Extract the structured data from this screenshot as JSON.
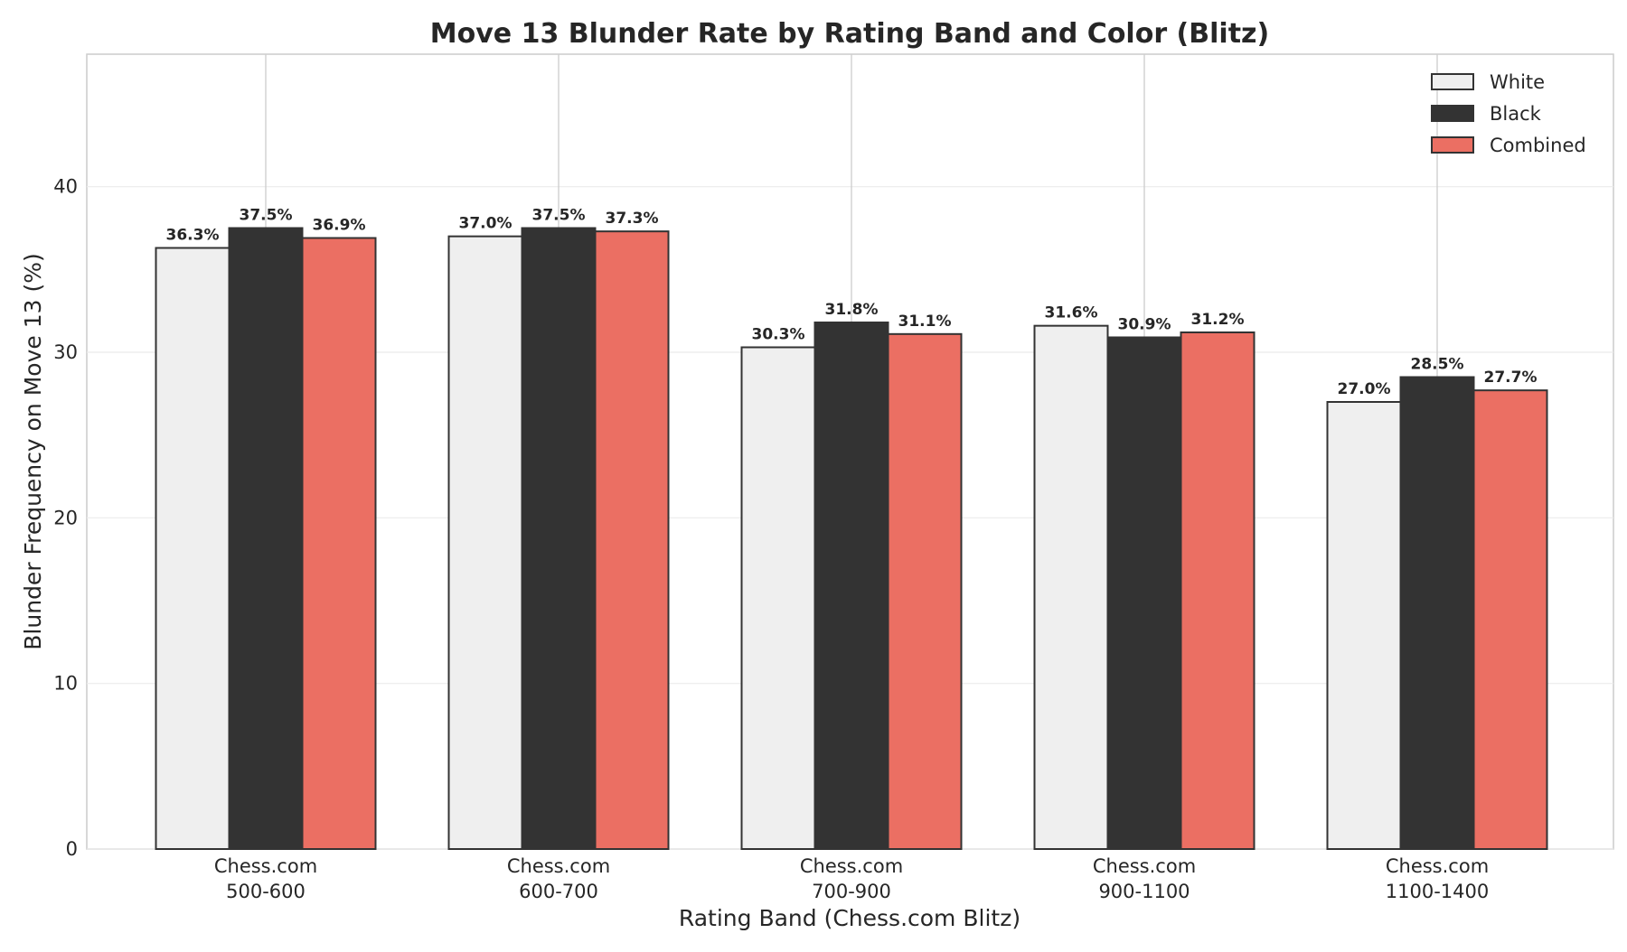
{
  "chart_data": {
    "type": "bar",
    "title": "Move 13 Blunder Rate by Rating Band and Color (Blitz)",
    "xlabel": "Rating Band (Chess.com Blitz)",
    "ylabel": "Blunder Frequency on Move 13 (%)",
    "categories": [
      [
        "Chess.com",
        "500-600"
      ],
      [
        "Chess.com",
        "600-700"
      ],
      [
        "Chess.com",
        "700-900"
      ],
      [
        "Chess.com",
        "900-1100"
      ],
      [
        "Chess.com",
        "1100-1400"
      ]
    ],
    "series": [
      {
        "name": "White",
        "color": "#efefef",
        "values": [
          36.3,
          37.0,
          30.3,
          31.6,
          27.0
        ],
        "labels": [
          "36.3%",
          "37.0%",
          "30.3%",
          "31.6%",
          "27.0%"
        ]
      },
      {
        "name": "Black",
        "color": "#333333",
        "values": [
          37.5,
          37.5,
          31.8,
          30.9,
          28.5
        ],
        "labels": [
          "37.5%",
          "37.5%",
          "31.8%",
          "30.9%",
          "28.5%"
        ]
      },
      {
        "name": "Combined",
        "color": "#eb6f63",
        "values": [
          36.9,
          37.3,
          31.1,
          31.2,
          27.7
        ],
        "labels": [
          "36.9%",
          "37.3%",
          "31.1%",
          "31.2%",
          "27.7%"
        ]
      }
    ],
    "yticks": [
      0,
      10,
      20,
      30,
      40
    ],
    "ylim": [
      0,
      48
    ],
    "grid": true,
    "legend": "top-right"
  }
}
